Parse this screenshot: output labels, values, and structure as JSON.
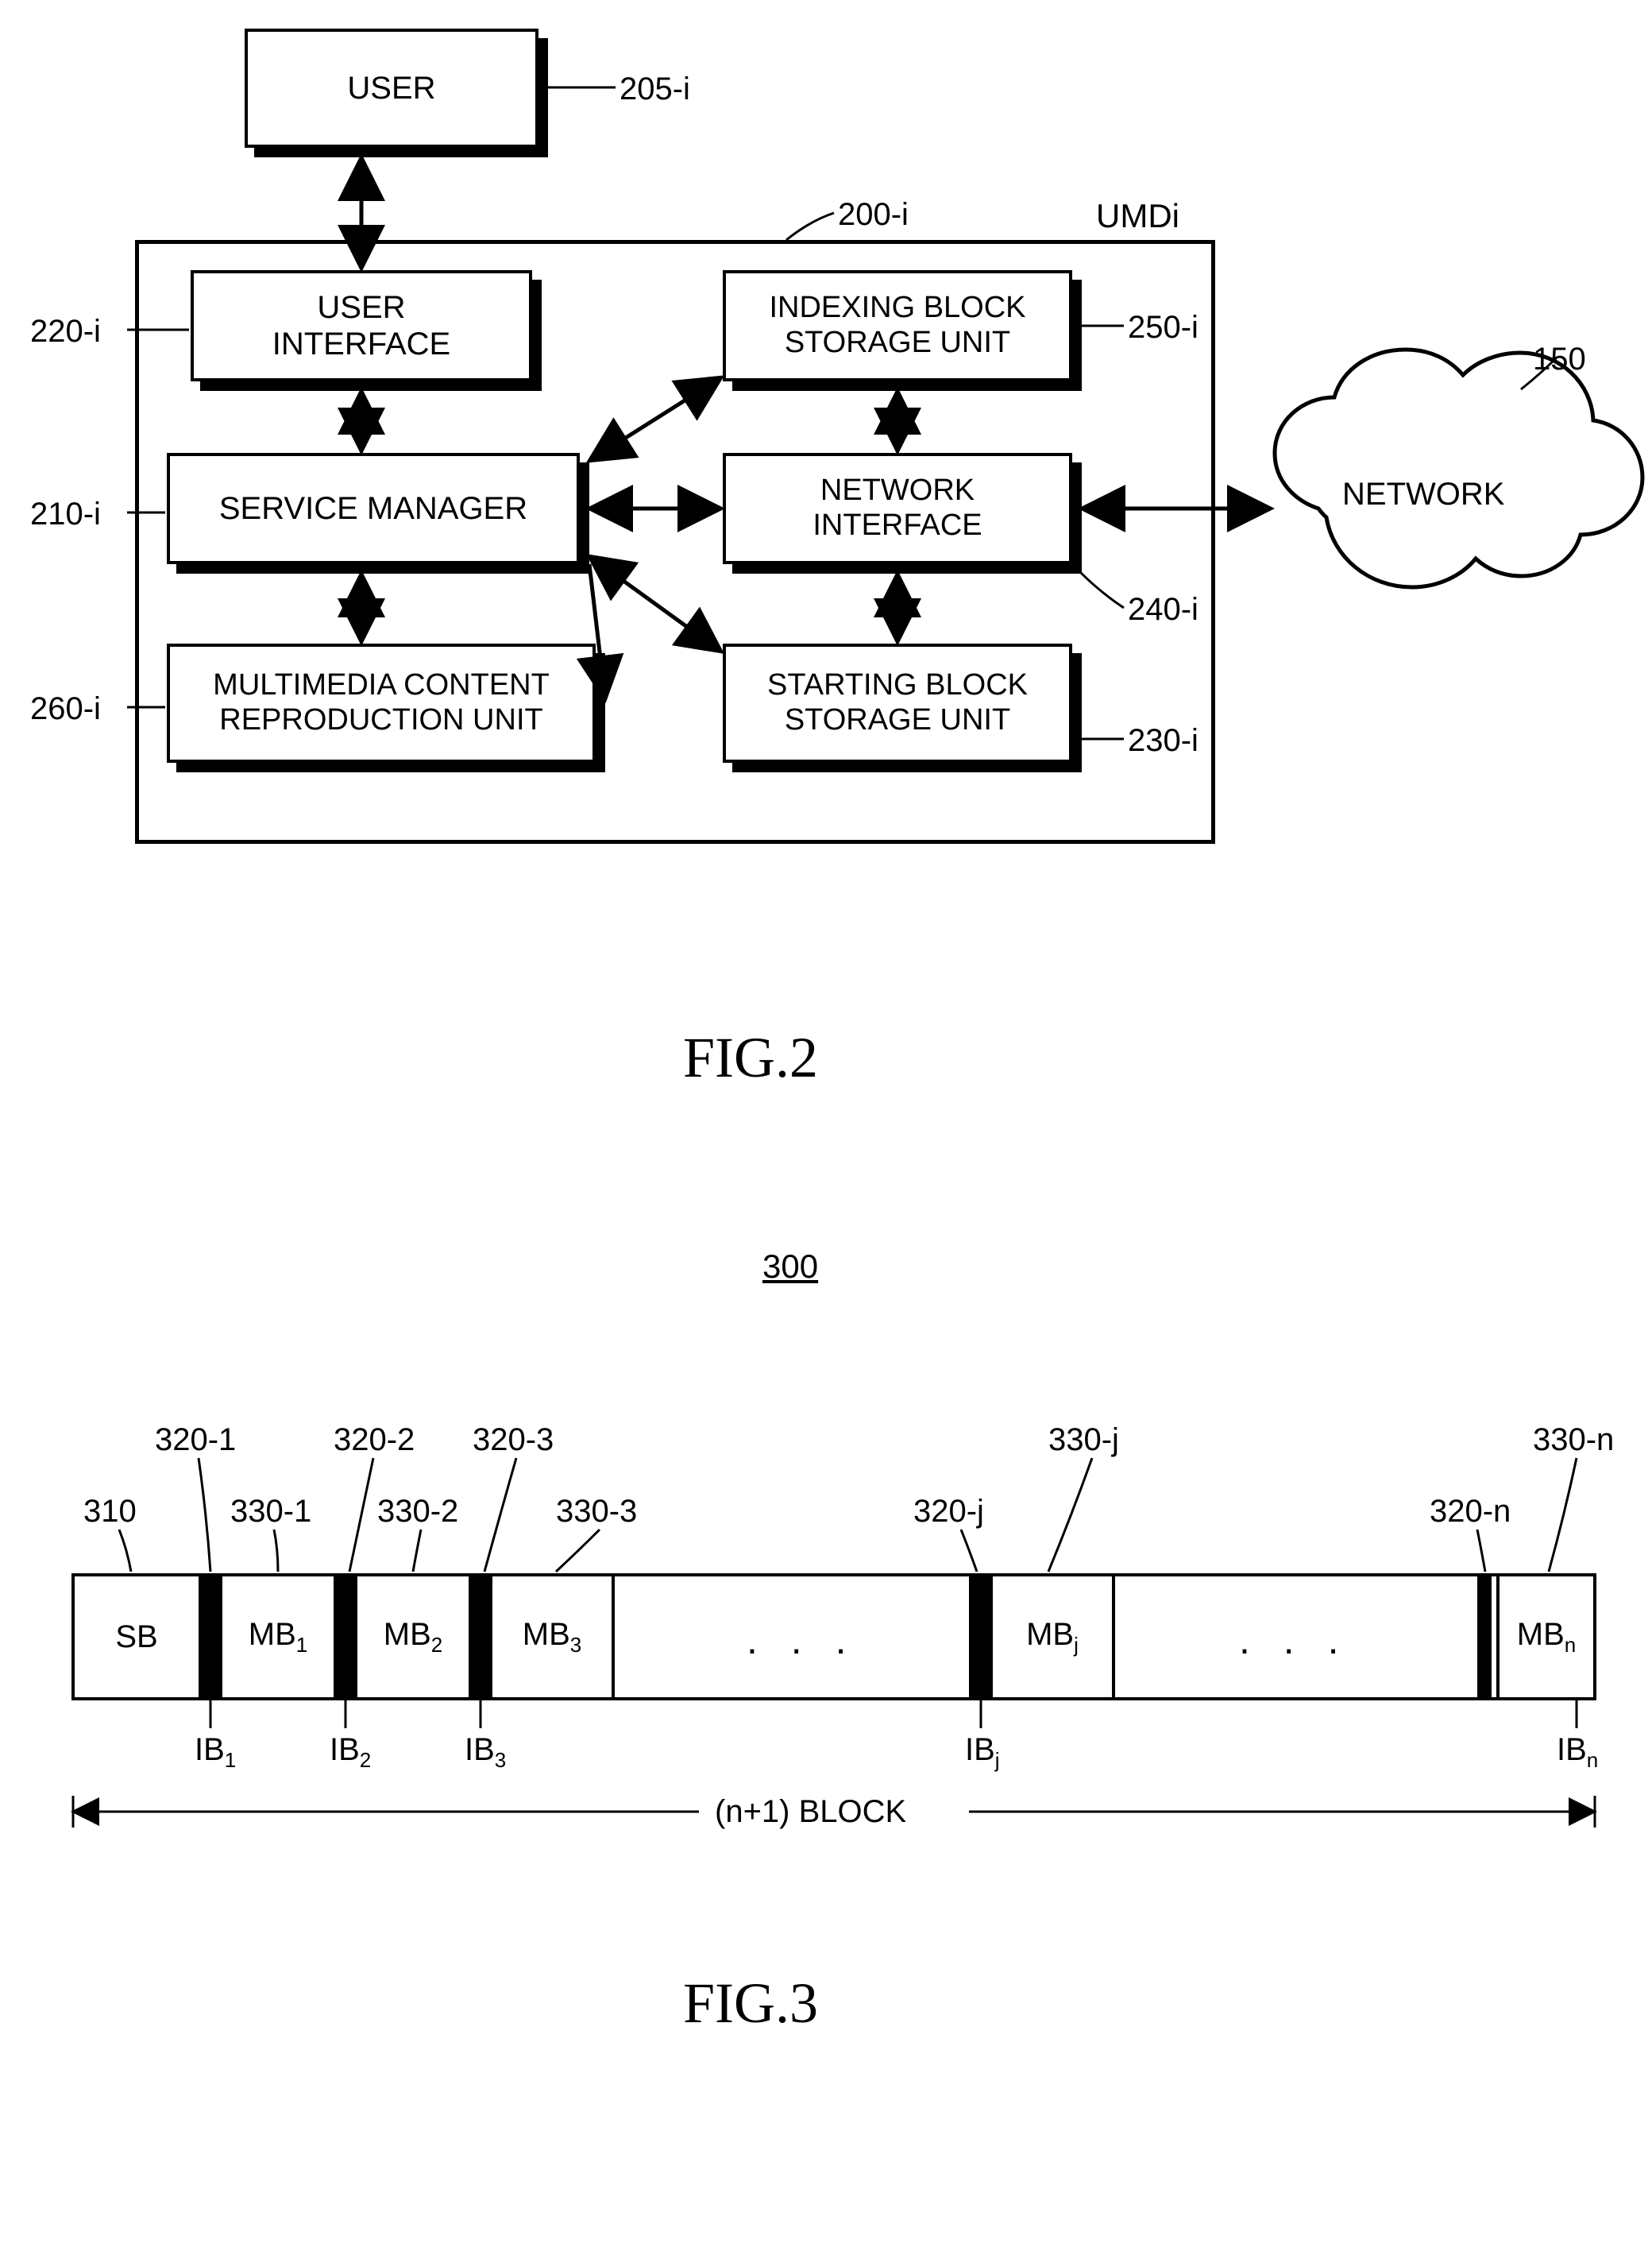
{
  "fig2": {
    "caption": "FIG.2",
    "user_box": {
      "text": "USER",
      "ref": "205-i"
    },
    "container_ref": "200-i",
    "container_tag": "UMDi",
    "ui": {
      "text": "USER\nINTERFACE",
      "ref": "220-i"
    },
    "svc": {
      "text": "SERVICE MANAGER",
      "ref": "210-i"
    },
    "mcr": {
      "text": "MULTIMEDIA CONTENT\nREPRODUCTION UNIT",
      "ref": "260-i"
    },
    "ibs": {
      "text": "INDEXING BLOCK\nSTORAGE UNIT",
      "ref": "250-i"
    },
    "nif": {
      "text": "NETWORK\nINTERFACE",
      "ref": "240-i"
    },
    "sbs": {
      "text": "STARTING BLOCK\nSTORAGE UNIT",
      "ref": "230-i"
    },
    "net": {
      "text": "NETWORK",
      "ref": "150"
    },
    "font_box": 40,
    "font_label": 40,
    "line_width": 4,
    "arrow_width": 4
  },
  "fig3": {
    "caption": "FIG.3",
    "title_ref": "300",
    "sb": {
      "text": "SB",
      "ref": "310"
    },
    "mb1": {
      "text": "MB",
      "sub": "1",
      "top_ref": "330-1",
      "ib_ref": "320-1",
      "ib_label": "IB",
      "ib_sub": "1"
    },
    "mb2": {
      "text": "MB",
      "sub": "2",
      "top_ref": "330-2",
      "ib_ref": "320-2",
      "ib_label": "IB",
      "ib_sub": "2"
    },
    "mb3": {
      "text": "MB",
      "sub": "3",
      "top_ref": "330-3",
      "ib_ref": "320-3",
      "ib_label": "IB",
      "ib_sub": "3"
    },
    "mbj": {
      "text": "MB",
      "sub": "j",
      "top_ref": "330-j",
      "ib_ref": "320-j",
      "ib_label": "IB",
      "ib_sub": "j"
    },
    "mbn": {
      "text": "MB",
      "sub": "n",
      "top_ref": "330-n",
      "ib_ref": "320-n",
      "ib_label": "IB",
      "ib_sub": "n"
    },
    "dots": ". . .",
    "span_label": "(n+1) BLOCK",
    "font_cell": 40,
    "font_label": 40,
    "font_sub": 26
  },
  "colors": {
    "line": "#000000",
    "bg": "#ffffff"
  }
}
